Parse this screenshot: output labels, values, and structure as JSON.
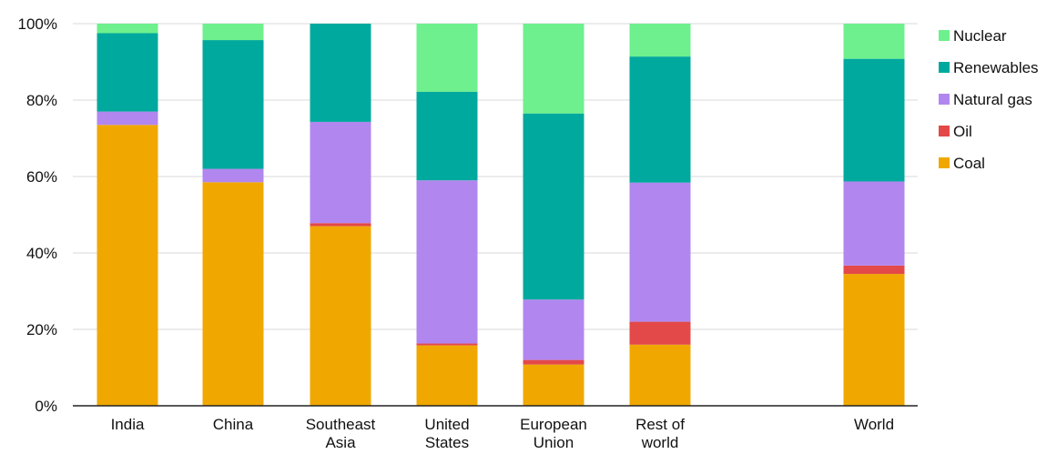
{
  "chart_data": {
    "type": "bar",
    "stacked": true,
    "categories": [
      [
        "India"
      ],
      [
        "China"
      ],
      [
        "Southeast",
        "Asia"
      ],
      [
        "United",
        "States"
      ],
      [
        "European",
        "Union"
      ],
      [
        "Rest of",
        "world"
      ],
      [
        "World"
      ]
    ],
    "series": [
      {
        "name": "Coal",
        "color": "#F0A800",
        "values": [
          73.5,
          58.5,
          47,
          15.8,
          10.8,
          16,
          34.5
        ]
      },
      {
        "name": "Oil",
        "color": "#E34948",
        "values": [
          0,
          0,
          0.8,
          0.5,
          1.2,
          6,
          2.2
        ]
      },
      {
        "name": "Natural gas",
        "color": "#B187EF",
        "values": [
          3.5,
          3.5,
          26.5,
          42.7,
          15.8,
          36.4,
          22
        ]
      },
      {
        "name": "Renewables",
        "color": "#00A99D",
        "values": [
          20.5,
          33.7,
          25.7,
          23.2,
          48.7,
          33,
          32.1
        ]
      },
      {
        "name": "Nuclear",
        "color": "#6DF08D",
        "values": [
          2.5,
          4.3,
          0,
          17.8,
          23.5,
          8.6,
          9.2
        ]
      }
    ],
    "ylim": [
      0,
      100
    ],
    "yticks": [
      "0%",
      "20%",
      "40%",
      "60%",
      "80%",
      "100%"
    ],
    "grid": true,
    "legend_position": "right",
    "legend_order": [
      "Nuclear",
      "Renewables",
      "Natural gas",
      "Oil",
      "Coal"
    ]
  }
}
